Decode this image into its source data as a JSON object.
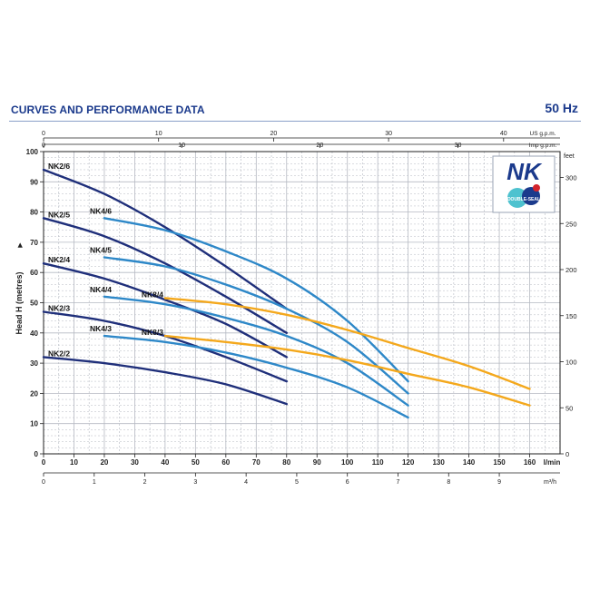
{
  "header": {
    "title": "CURVES AND PERFORMANCE DATA",
    "frequency": "50 Hz"
  },
  "logo": {
    "brand": "NK",
    "badge": "DOUBLE-SEAL"
  },
  "colors": {
    "dark": "#1f2f7a",
    "mid": "#2e88c8",
    "orange": "#f4a81c",
    "brand": "#1b3a8c",
    "grid": "#b5b9c2",
    "logo_red": "#d4242c",
    "logo_teal": "#4ec2cf"
  },
  "chart_data": {
    "type": "line",
    "title": "CURVES AND PERFORMANCE DATA",
    "subtitle": "50 Hz",
    "xlabel": "l/min",
    "ylabel": "Head H (metres)",
    "xlim": [
      0,
      170
    ],
    "ylim": [
      0,
      100
    ],
    "grid": true,
    "axes": {
      "x_bottom": {
        "unit": "l/min",
        "ticks": [
          0,
          10,
          20,
          30,
          40,
          50,
          60,
          70,
          80,
          90,
          100,
          110,
          120,
          130,
          140,
          150,
          160
        ]
      },
      "x_m3h": {
        "unit": "m³/h",
        "ticks": [
          0,
          1,
          2,
          3,
          4,
          5,
          6,
          7,
          8,
          9
        ]
      },
      "x_usgpm": {
        "unit": "US g.p.m.",
        "ticks": [
          0,
          10,
          20,
          30,
          40
        ]
      },
      "x_impgpm": {
        "unit": "Imp g.p.m.",
        "ticks": [
          0,
          10,
          20,
          30
        ]
      },
      "y_left": {
        "unit": "m",
        "ticks": [
          0,
          10,
          20,
          30,
          40,
          50,
          60,
          70,
          80,
          90,
          100
        ]
      },
      "y_right": {
        "unit": "feet",
        "ticks": [
          0,
          50,
          100,
          150,
          200,
          250,
          300
        ]
      }
    },
    "series": [
      {
        "name": "NK2/6",
        "family": "dark",
        "x": [
          0,
          20,
          40,
          60,
          80
        ],
        "y": [
          94,
          86,
          75,
          62,
          48
        ]
      },
      {
        "name": "NK2/5",
        "family": "dark",
        "x": [
          0,
          20,
          40,
          60,
          80
        ],
        "y": [
          78,
          72,
          63,
          52,
          40
        ]
      },
      {
        "name": "NK2/4",
        "family": "dark",
        "x": [
          0,
          20,
          40,
          60,
          80
        ],
        "y": [
          63,
          58,
          51,
          43,
          32
        ]
      },
      {
        "name": "NK2/3",
        "family": "dark",
        "x": [
          0,
          20,
          40,
          60,
          80
        ],
        "y": [
          47,
          44,
          39,
          32,
          24
        ]
      },
      {
        "name": "NK2/2",
        "family": "dark",
        "x": [
          0,
          20,
          40,
          60,
          80
        ],
        "y": [
          32,
          30,
          27,
          23,
          16.5
        ]
      },
      {
        "name": "NK4/6",
        "family": "mid",
        "x": [
          20,
          40,
          60,
          80,
          100,
          120
        ],
        "y": [
          78,
          74,
          67,
          58,
          44,
          24
        ]
      },
      {
        "name": "NK4/5",
        "family": "mid",
        "x": [
          20,
          40,
          60,
          80,
          100,
          120
        ],
        "y": [
          65,
          62,
          56,
          48,
          37,
          20
        ]
      },
      {
        "name": "NK4/4",
        "family": "mid",
        "x": [
          20,
          40,
          60,
          80,
          100,
          120
        ],
        "y": [
          52,
          49.5,
          45,
          39,
          30,
          16
        ]
      },
      {
        "name": "NK4/3",
        "family": "mid",
        "x": [
          20,
          40,
          60,
          80,
          100,
          120
        ],
        "y": [
          39,
          37,
          33.5,
          28.5,
          22,
          12
        ]
      },
      {
        "name": "NK8/4",
        "family": "orange",
        "x": [
          40,
          60,
          80,
          100,
          120,
          140,
          160
        ],
        "y": [
          51.5,
          49.5,
          46,
          41,
          35,
          29,
          21.5
        ]
      },
      {
        "name": "NK8/3",
        "family": "orange",
        "x": [
          40,
          60,
          80,
          100,
          120,
          140,
          160
        ],
        "y": [
          39,
          37,
          34.5,
          31,
          26.5,
          22,
          16
        ]
      }
    ]
  }
}
